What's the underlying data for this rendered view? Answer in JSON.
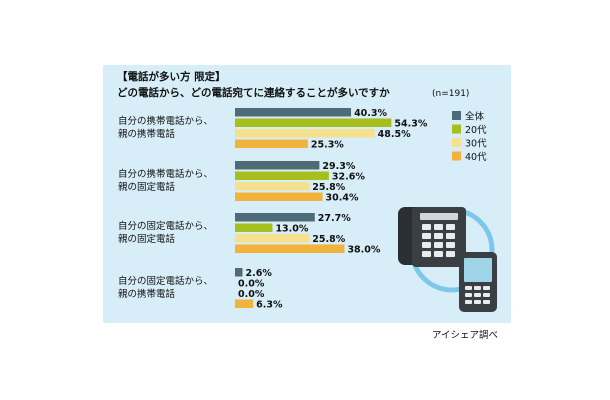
{
  "chart_data": {
    "type": "bar",
    "orientation": "horizontal",
    "title_lines": [
      "【電話が多い方 限定】",
      "どの電話から、どの電話宛てに連絡することが多いですか"
    ],
    "sample_note": "(n=191)",
    "categories": [
      [
        "自分の携帯電話から、",
        "親の携帯電話"
      ],
      [
        "自分の携帯電話から、",
        "親の固定電話"
      ],
      [
        "自分の固定電話から、",
        "親の固定電話"
      ],
      [
        "自分の固定電話から、",
        "親の携帯電話"
      ]
    ],
    "series": [
      {
        "name": "全体",
        "color": "#4d6b78",
        "values": [
          40.3,
          29.3,
          27.7,
          2.6
        ]
      },
      {
        "name": "20代",
        "color": "#a6bf1c",
        "values": [
          54.3,
          32.6,
          13.0,
          0.0
        ]
      },
      {
        "name": "30代",
        "color": "#f5e08e",
        "values": [
          48.5,
          25.8,
          25.8,
          0.0
        ]
      },
      {
        "name": "40代",
        "color": "#f1b33c",
        "values": [
          25.3,
          30.4,
          38.0,
          6.3
        ]
      }
    ],
    "value_suffix": "%",
    "xlim": [
      0,
      100
    ],
    "grid": false,
    "legend_position": "top-right",
    "source": "アイシェア調べ"
  }
}
